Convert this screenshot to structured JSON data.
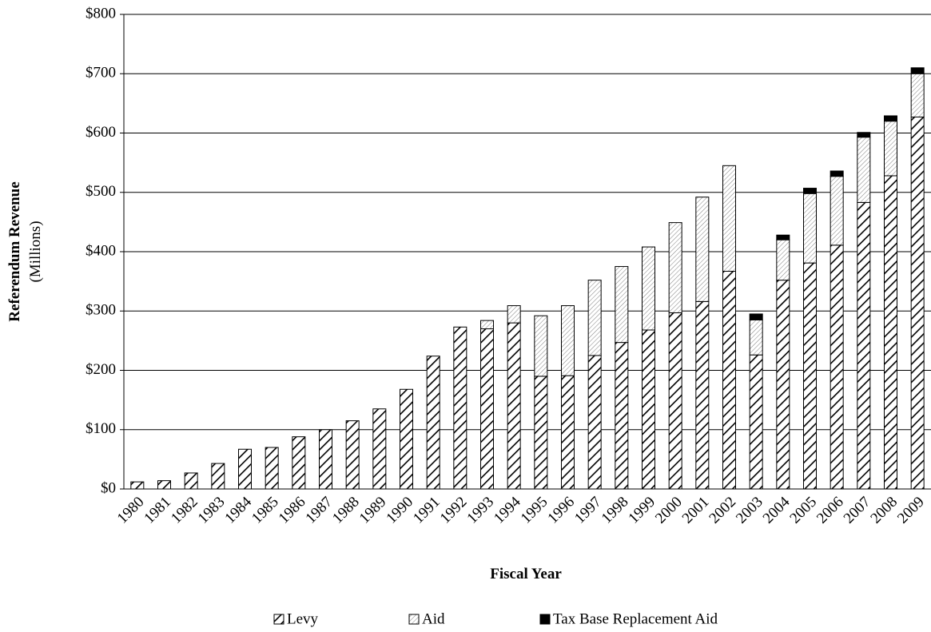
{
  "chart_data": {
    "type": "stacked-bar",
    "y_title": "Referendum Revenue",
    "y_subtitle": "(Millions)",
    "x_title": "Fiscal Year",
    "categories": [
      "1980",
      "1981",
      "1982",
      "1983",
      "1984",
      "1985",
      "1986",
      "1987",
      "1988",
      "1989",
      "1990",
      "1991",
      "1992",
      "1993",
      "1994",
      "1995",
      "1996",
      "1997",
      "1998",
      "1999",
      "2000",
      "2001",
      "2002",
      "2003",
      "2004",
      "2005",
      "2006",
      "2007",
      "2008",
      "2009"
    ],
    "series": [
      {
        "name": "Levy",
        "color": "#000000",
        "values": [
          12,
          14,
          27,
          43,
          67,
          70,
          88,
          100,
          115,
          135,
          168,
          224,
          273,
          270,
          280,
          190,
          191,
          225,
          247,
          268,
          297,
          316,
          367,
          226,
          352,
          381,
          411,
          483,
          528,
          627
        ]
      },
      {
        "name": "Aid",
        "color": "#808080",
        "values": [
          null,
          null,
          null,
          null,
          null,
          null,
          null,
          null,
          null,
          null,
          null,
          null,
          null,
          14,
          29,
          102,
          118,
          127,
          128,
          140,
          152,
          176,
          178,
          59,
          68,
          117,
          116,
          110,
          92,
          73
        ]
      },
      {
        "name": "Tax Base Replacement Aid",
        "color": "#000000",
        "values": [
          null,
          null,
          null,
          null,
          null,
          null,
          null,
          null,
          null,
          null,
          null,
          null,
          null,
          null,
          null,
          null,
          null,
          null,
          null,
          null,
          null,
          null,
          null,
          10,
          8,
          9,
          9,
          8,
          9,
          10
        ]
      }
    ],
    "ylim": [
      0,
      800
    ],
    "yticks": [
      {
        "value": 0,
        "label": "$0"
      },
      {
        "value": 100,
        "label": "$100"
      },
      {
        "value": 200,
        "label": "$200"
      },
      {
        "value": 300,
        "label": "$300"
      },
      {
        "value": 400,
        "label": "$400"
      },
      {
        "value": 500,
        "label": "$500"
      },
      {
        "value": 600,
        "label": "$600"
      },
      {
        "value": 700,
        "label": "$700"
      },
      {
        "value": 800,
        "label": "$800"
      }
    ],
    "grid": true
  }
}
